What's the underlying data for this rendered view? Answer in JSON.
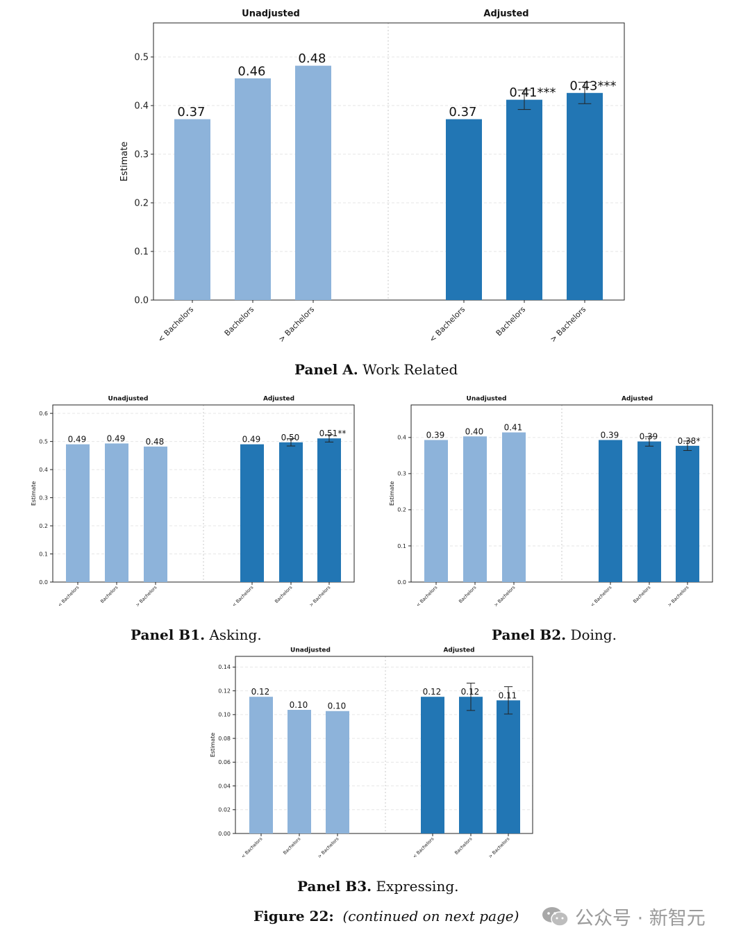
{
  "figure": {
    "caption_label": "Figure 22:",
    "caption_text": "(continued on next page)",
    "watermark": "公众号 · 新智元"
  },
  "colors": {
    "unadjusted": "#8db3da",
    "adjusted": "#2276b4",
    "error_bar": "#222222",
    "grid": "#e6e6e6",
    "divider": "#c8c8c8",
    "axis": "#222222"
  },
  "chart_data": [
    {
      "id": "A",
      "type": "bar",
      "panel_label": "Panel A.",
      "panel_title": "Work Related",
      "subplot_titles": [
        "Unadjusted",
        "Adjusted"
      ],
      "ylabel": "Estimate",
      "ylim": [
        0,
        0.57
      ],
      "yticks": [
        "0.0",
        "0.1",
        "0.2",
        "0.3",
        "0.4",
        "0.5"
      ],
      "ytick_values": [
        0,
        0.1,
        0.2,
        0.3,
        0.4,
        0.5
      ],
      "categories": [
        "< Bachelors",
        "Bachelors",
        "> Bachelors"
      ],
      "grid": "horizontal-dashed",
      "series": [
        {
          "name": "Unadjusted",
          "values": [
            0.372,
            0.456,
            0.482
          ],
          "labels": [
            "0.37",
            "0.46",
            "0.48"
          ],
          "errors": [
            0,
            0,
            0
          ]
        },
        {
          "name": "Adjusted",
          "values": [
            0.372,
            0.412,
            0.426
          ],
          "labels": [
            "0.37",
            "0.41***",
            "0.43***"
          ],
          "errors": [
            0,
            0.02,
            0.022
          ]
        }
      ]
    },
    {
      "id": "B1",
      "type": "bar",
      "panel_label": "Panel B1.",
      "panel_title": "Asking.",
      "subplot_titles": [
        "Unadjusted",
        "Adjusted"
      ],
      "ylabel": "Estimate",
      "ylim": [
        0,
        0.63
      ],
      "yticks": [
        "0.0",
        "0.1",
        "0.2",
        "0.3",
        "0.4",
        "0.5",
        "0.6"
      ],
      "ytick_values": [
        0,
        0.1,
        0.2,
        0.3,
        0.4,
        0.5,
        0.6
      ],
      "categories": [
        "< Bachelors",
        "Bachelors",
        "> Bachelors"
      ],
      "grid": "horizontal-dashed",
      "series": [
        {
          "name": "Unadjusted",
          "values": [
            0.49,
            0.493,
            0.482
          ],
          "labels": [
            "0.49",
            "0.49",
            "0.48"
          ],
          "errors": [
            0,
            0,
            0
          ]
        },
        {
          "name": "Adjusted",
          "values": [
            0.49,
            0.497,
            0.511
          ],
          "labels": [
            "0.49",
            "0.50",
            "0.51**"
          ],
          "errors": [
            0,
            0.013,
            0.013
          ]
        }
      ]
    },
    {
      "id": "B2",
      "type": "bar",
      "panel_label": "Panel B2.",
      "panel_title": "Doing.",
      "subplot_titles": [
        "Unadjusted",
        "Adjusted"
      ],
      "ylabel": "Estimate",
      "ylim": [
        0,
        0.49
      ],
      "yticks": [
        "0.0",
        "0.1",
        "0.2",
        "0.3",
        "0.4"
      ],
      "ytick_values": [
        0,
        0.1,
        0.2,
        0.3,
        0.4
      ],
      "categories": [
        "< Bachelors",
        "Bachelors",
        "> Bachelors"
      ],
      "grid": "horizontal-dashed",
      "series": [
        {
          "name": "Unadjusted",
          "values": [
            0.393,
            0.403,
            0.414
          ],
          "labels": [
            "0.39",
            "0.40",
            "0.41"
          ],
          "errors": [
            0,
            0,
            0
          ]
        },
        {
          "name": "Adjusted",
          "values": [
            0.393,
            0.389,
            0.377
          ],
          "labels": [
            "0.39",
            "0.39",
            "0.38*"
          ],
          "errors": [
            0,
            0.013,
            0.013
          ]
        }
      ]
    },
    {
      "id": "B3",
      "type": "bar",
      "panel_label": "Panel B3.",
      "panel_title": "Expressing.",
      "subplot_titles": [
        "Unadjusted",
        "Adjusted"
      ],
      "ylabel": "Estimate",
      "ylim": [
        0,
        0.149
      ],
      "yticks": [
        "0.00",
        "0.02",
        "0.04",
        "0.06",
        "0.08",
        "0.10",
        "0.12",
        "0.14"
      ],
      "ytick_values": [
        0,
        0.02,
        0.04,
        0.06,
        0.08,
        0.1,
        0.12,
        0.14
      ],
      "categories": [
        "< Bachelors",
        "Bachelors",
        "> Bachelors"
      ],
      "grid": "horizontal-dashed",
      "series": [
        {
          "name": "Unadjusted",
          "values": [
            0.115,
            0.104,
            0.103
          ],
          "labels": [
            "0.12",
            "0.10",
            "0.10"
          ],
          "errors": [
            0,
            0,
            0
          ]
        },
        {
          "name": "Adjusted",
          "values": [
            0.115,
            0.115,
            0.112
          ],
          "labels": [
            "0.12",
            "0.12",
            "0.11"
          ],
          "errors": [
            0,
            0.0115,
            0.0115
          ]
        }
      ]
    }
  ]
}
